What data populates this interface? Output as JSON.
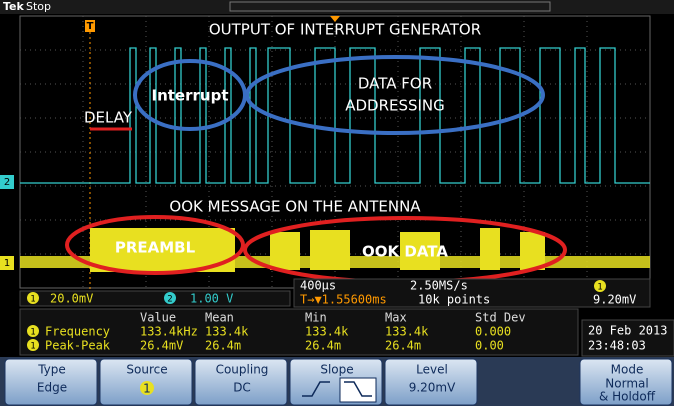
{
  "status_bar": {
    "brand": "Tek",
    "state": "Stop"
  },
  "annotations": {
    "top_title": "OUTPUT OF INTERRUPT GENERATOR",
    "interrupt": "Interrupt",
    "data_for_addressing": [
      "DATA FOR",
      "ADDRESSING"
    ],
    "delay": "DELAY",
    "bottom_title": "OOK MESSAGE ON THE ANTENNA",
    "preamble": "PREAMBL",
    "ook_data": "OOK DATA"
  },
  "channel_markers": {
    "ch2": "2",
    "ch1": "1",
    "trigger": "T"
  },
  "readouts": {
    "ch1_label": "1",
    "ch1_scale": "20.0mV",
    "ch2_label": "2",
    "ch2_scale": "1.00 V",
    "timebase": "400µs",
    "sample_rate": "2.50MS/s",
    "trigger_position": "T→▼1.55600ms",
    "record_length": "10k points",
    "trigger_source": "1",
    "trigger_level": "9.20mV"
  },
  "measurements": {
    "headers": [
      "Value",
      "Mean",
      "Min",
      "Max",
      "Std Dev"
    ],
    "rows": [
      {
        "source": "1",
        "name": "Frequency",
        "cells": [
          "133.4kHz",
          "133.4k",
          "133.4k",
          "133.4k",
          "0.000"
        ]
      },
      {
        "source": "1",
        "name": "Peak-Peak",
        "cells": [
          "26.4mV",
          "26.4m",
          "26.4m",
          "26.4m",
          "0.00"
        ]
      }
    ]
  },
  "datetime": {
    "date": "20 Feb 2013",
    "time": "23:48:03"
  },
  "menu": [
    {
      "label": "Type",
      "value": "Edge"
    },
    {
      "label": "Source",
      "value": "1"
    },
    {
      "label": "Coupling",
      "value": "DC"
    },
    {
      "label": "Slope"
    },
    {
      "label": "Level",
      "value": "9.20mV"
    },
    {
      "label": "Mode",
      "value": [
        "Normal",
        "& Holdoff"
      ]
    }
  ]
}
